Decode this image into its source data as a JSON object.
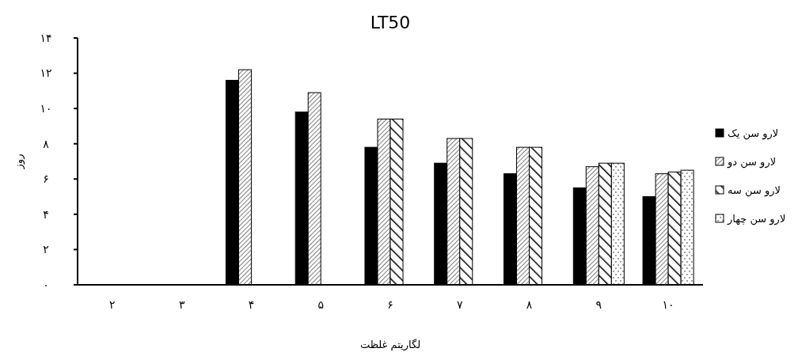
{
  "chart_data": {
    "type": "bar",
    "title": "LT50",
    "xlabel": "لگاریتم غلظت",
    "ylabel": "روز",
    "categories": [
      "۲",
      "۳",
      "۴",
      "۵",
      "۶",
      "۷",
      "۸",
      "۹",
      "۱۰"
    ],
    "series": [
      {
        "name": "لارو سن یک",
        "color": "#000000",
        "values": [
          null,
          null,
          11.6,
          9.8,
          7.8,
          6.9,
          6.3,
          5.5,
          5.0
        ]
      },
      {
        "name": "لارو سن دو",
        "color": "#000000",
        "values": [
          null,
          null,
          12.2,
          10.9,
          9.4,
          8.3,
          7.8,
          6.7,
          6.3
        ]
      },
      {
        "name": "لارو سن سه",
        "color": "#000000",
        "values": [
          null,
          null,
          null,
          null,
          9.4,
          8.3,
          7.8,
          6.9,
          6.4
        ]
      },
      {
        "name": "لارو سن چهار",
        "color": "#000000",
        "values": [
          null,
          null,
          null,
          null,
          null,
          null,
          null,
          6.9,
          6.5
        ]
      }
    ],
    "ylim": [
      0,
      14
    ],
    "yticks": [
      {
        "value": 0,
        "label": "۰"
      },
      {
        "value": 2,
        "label": "۲"
      },
      {
        "value": 4,
        "label": "۴"
      },
      {
        "value": 6,
        "label": "۶"
      },
      {
        "value": 8,
        "label": "۸"
      },
      {
        "value": 10,
        "label": "۱۰"
      },
      {
        "value": 12,
        "label": "۱۲"
      },
      {
        "value": 14,
        "label": "۱۴"
      }
    ],
    "grid": false,
    "legend": "right"
  }
}
